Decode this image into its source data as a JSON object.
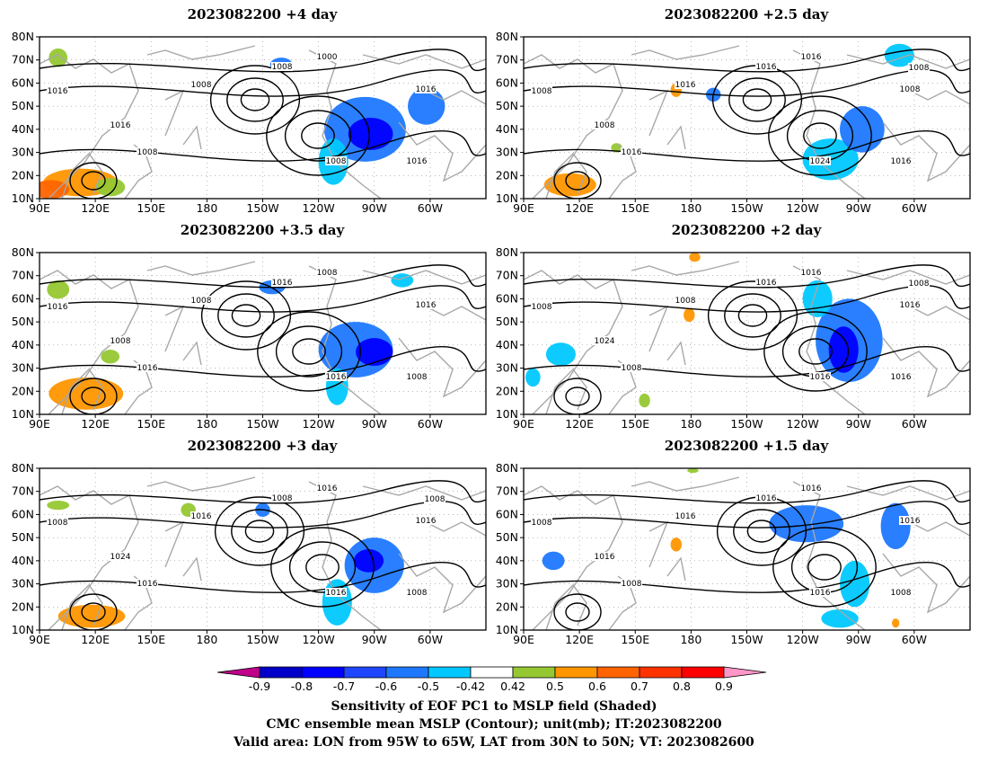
{
  "panels": [
    {
      "title": "2023082200 +4 day",
      "contour_labels": [
        "1000",
        "1008",
        "1008",
        "1016",
        "1016",
        "1016",
        "1008",
        "1008",
        "1016"
      ],
      "positive_patches": [
        {
          "lon": 112,
          "lat": 17,
          "rx": 20,
          "ry": 6,
          "level": 0.6
        },
        {
          "lon": 96,
          "lat": 14,
          "rx": 10,
          "ry": 4,
          "level": 0.7
        },
        {
          "lon": 128,
          "lat": 15,
          "rx": 8,
          "ry": 4,
          "level": 0.5
        },
        {
          "lon": 100,
          "lat": 71,
          "rx": 5,
          "ry": 4,
          "level": 0.5
        }
      ],
      "negative_patches": [
        {
          "lon": -95,
          "lat": 40,
          "rx": 22,
          "ry": 14,
          "level": -0.6
        },
        {
          "lon": -92,
          "lat": 38,
          "rx": 12,
          "ry": 7,
          "level": -0.8
        },
        {
          "lon": -62,
          "lat": 50,
          "rx": 10,
          "ry": 8,
          "level": -0.6
        },
        {
          "lon": -112,
          "lat": 26,
          "rx": 8,
          "ry": 10,
          "level": -0.5
        },
        {
          "lon": -140,
          "lat": 68,
          "rx": 6,
          "ry": 3,
          "level": -0.6
        }
      ]
    },
    {
      "title": "2023082200 +2.5 day",
      "contour_labels": [
        "1016",
        "1016",
        "1016",
        "1008",
        "1008",
        "1008",
        "1024",
        "1016",
        "1016",
        "1008"
      ],
      "positive_patches": [
        {
          "lon": 115,
          "lat": 16,
          "rx": 14,
          "ry": 5,
          "level": 0.6
        },
        {
          "lon": 172,
          "lat": 57,
          "rx": 3,
          "ry": 3,
          "level": 0.6
        },
        {
          "lon": 140,
          "lat": 32,
          "rx": 3,
          "ry": 2,
          "level": 0.5
        }
      ],
      "negative_patches": [
        {
          "lon": -105,
          "lat": 27,
          "rx": 15,
          "ry": 9,
          "level": -0.5
        },
        {
          "lon": -88,
          "lat": 40,
          "rx": 12,
          "ry": 10,
          "level": -0.6
        },
        {
          "lon": -68,
          "lat": 72,
          "rx": 8,
          "ry": 5,
          "level": -0.5
        },
        {
          "lon": -168,
          "lat": 55,
          "rx": 4,
          "ry": 3,
          "level": -0.6
        }
      ]
    },
    {
      "title": "2023082200 +3.5 day",
      "contour_labels": [
        "1008",
        "1016",
        "1008",
        "1016",
        "1016",
        "1008",
        "1016",
        "1016",
        "1008"
      ],
      "positive_patches": [
        {
          "lon": 115,
          "lat": 19,
          "rx": 20,
          "ry": 7,
          "level": 0.6
        },
        {
          "lon": 100,
          "lat": 64,
          "rx": 6,
          "ry": 4,
          "level": 0.5
        },
        {
          "lon": 128,
          "lat": 35,
          "rx": 5,
          "ry": 3,
          "level": 0.5
        }
      ],
      "negative_patches": [
        {
          "lon": -100,
          "lat": 38,
          "rx": 20,
          "ry": 12,
          "level": -0.6
        },
        {
          "lon": -90,
          "lat": 37,
          "rx": 10,
          "ry": 6,
          "level": -0.8
        },
        {
          "lon": -110,
          "lat": 22,
          "rx": 6,
          "ry": 8,
          "level": -0.5
        },
        {
          "lon": -145,
          "lat": 65,
          "rx": 7,
          "ry": 3,
          "level": -0.6
        },
        {
          "lon": -75,
          "lat": 68,
          "rx": 6,
          "ry": 3,
          "level": -0.5
        }
      ]
    },
    {
      "title": "2023082200 +2 day",
      "contour_labels": [
        "1016",
        "1016",
        "1008",
        "1016",
        "1008",
        "1024",
        "1016",
        "1008",
        "1016",
        "1008"
      ],
      "positive_patches": [
        {
          "lon": 179,
          "lat": 53,
          "rx": 3,
          "ry": 3,
          "level": 0.6
        },
        {
          "lon": 182,
          "lat": 78,
          "rx": 3,
          "ry": 2,
          "level": 0.6
        },
        {
          "lon": 155,
          "lat": 16,
          "rx": 3,
          "ry": 3,
          "level": 0.5
        }
      ],
      "negative_patches": [
        {
          "lon": -95,
          "lat": 42,
          "rx": 18,
          "ry": 18,
          "level": -0.6
        },
        {
          "lon": -98,
          "lat": 38,
          "rx": 8,
          "ry": 10,
          "level": -0.8
        },
        {
          "lon": -112,
          "lat": 60,
          "rx": 8,
          "ry": 8,
          "level": -0.5
        },
        {
          "lon": 110,
          "lat": 36,
          "rx": 8,
          "ry": 5,
          "level": -0.5
        },
        {
          "lon": 95,
          "lat": 26,
          "rx": 4,
          "ry": 4,
          "level": -0.5
        }
      ]
    },
    {
      "title": "2023082200 +3 day",
      "contour_labels": [
        "1016",
        "1008",
        "1016",
        "1016",
        "1008",
        "1024",
        "1016",
        "1016",
        "1008",
        "1008"
      ],
      "positive_patches": [
        {
          "lon": 118,
          "lat": 16,
          "rx": 18,
          "ry": 5,
          "level": 0.6
        },
        {
          "lon": 100,
          "lat": 64,
          "rx": 6,
          "ry": 2,
          "level": 0.5
        },
        {
          "lon": 170,
          "lat": 62,
          "rx": 4,
          "ry": 3,
          "level": 0.5
        }
      ],
      "negative_patches": [
        {
          "lon": -90,
          "lat": 38,
          "rx": 16,
          "ry": 12,
          "level": -0.6
        },
        {
          "lon": -110,
          "lat": 22,
          "rx": 8,
          "ry": 10,
          "level": -0.5
        },
        {
          "lon": -93,
          "lat": 40,
          "rx": 8,
          "ry": 5,
          "level": -0.8
        },
        {
          "lon": -150,
          "lat": 62,
          "rx": 4,
          "ry": 3,
          "level": -0.6
        }
      ]
    },
    {
      "title": "2023082200 +1.5 day",
      "contour_labels": [
        "1016",
        "1016",
        "1016",
        "1016",
        "1008",
        "1016",
        "1016",
        "1008",
        "1008"
      ],
      "positive_patches": [
        {
          "lon": 181,
          "lat": 79,
          "rx": 3,
          "ry": 1,
          "level": 0.5
        },
        {
          "lon": 172,
          "lat": 47,
          "rx": 3,
          "ry": 3,
          "level": 0.6
        },
        {
          "lon": -70,
          "lat": 13,
          "rx": 2,
          "ry": 2,
          "level": 0.6
        }
      ],
      "negative_patches": [
        {
          "lon": -118,
          "lat": 56,
          "rx": 20,
          "ry": 8,
          "level": -0.6
        },
        {
          "lon": -92,
          "lat": 30,
          "rx": 8,
          "ry": 10,
          "level": -0.5
        },
        {
          "lon": -70,
          "lat": 55,
          "rx": 8,
          "ry": 10,
          "level": -0.6
        },
        {
          "lon": 106,
          "lat": 40,
          "rx": 6,
          "ry": 4,
          "level": -0.6
        },
        {
          "lon": -100,
          "lat": 15,
          "rx": 10,
          "ry": 4,
          "level": -0.5
        }
      ]
    }
  ],
  "map_axes": {
    "lon_ticks": [
      "90E",
      "120E",
      "150E",
      "180",
      "150W",
      "120W",
      "90W",
      "60W"
    ],
    "lat_ticks": [
      "10N",
      "20N",
      "30N",
      "40N",
      "50N",
      "60N",
      "70N",
      "80N"
    ],
    "lon_range": [
      90,
      330
    ],
    "lat_range": [
      10,
      80
    ]
  },
  "colorbar": {
    "labels": [
      "-0.9",
      "-0.8",
      "-0.7",
      "-0.6",
      "-0.5",
      "-0.42",
      "0.42",
      "0.5",
      "0.6",
      "0.7",
      "0.8",
      "0.9"
    ],
    "colors": [
      "#c0008a",
      "#0000c8",
      "#0000ff",
      "#1e46ff",
      "#1e78ff",
      "#00c8ff",
      "#ffffff",
      "#96c832",
      "#ff9600",
      "#ff6400",
      "#ff3200",
      "#ff0000",
      "#ff96c8"
    ]
  },
  "caption": {
    "line1": "Sensitivity of EOF PC1 to MSLP field (Shaded)",
    "line2": "CMC ensemble mean MSLP (Contour); unit(mb); IT:2023082200",
    "line3": "Valid area: LON from 95W to 65W, LAT from 30N to 50N; VT: 2023082600"
  },
  "colors": {
    "contour": "#000000",
    "coastline": "#a8a8a8",
    "grid": "#909090"
  }
}
